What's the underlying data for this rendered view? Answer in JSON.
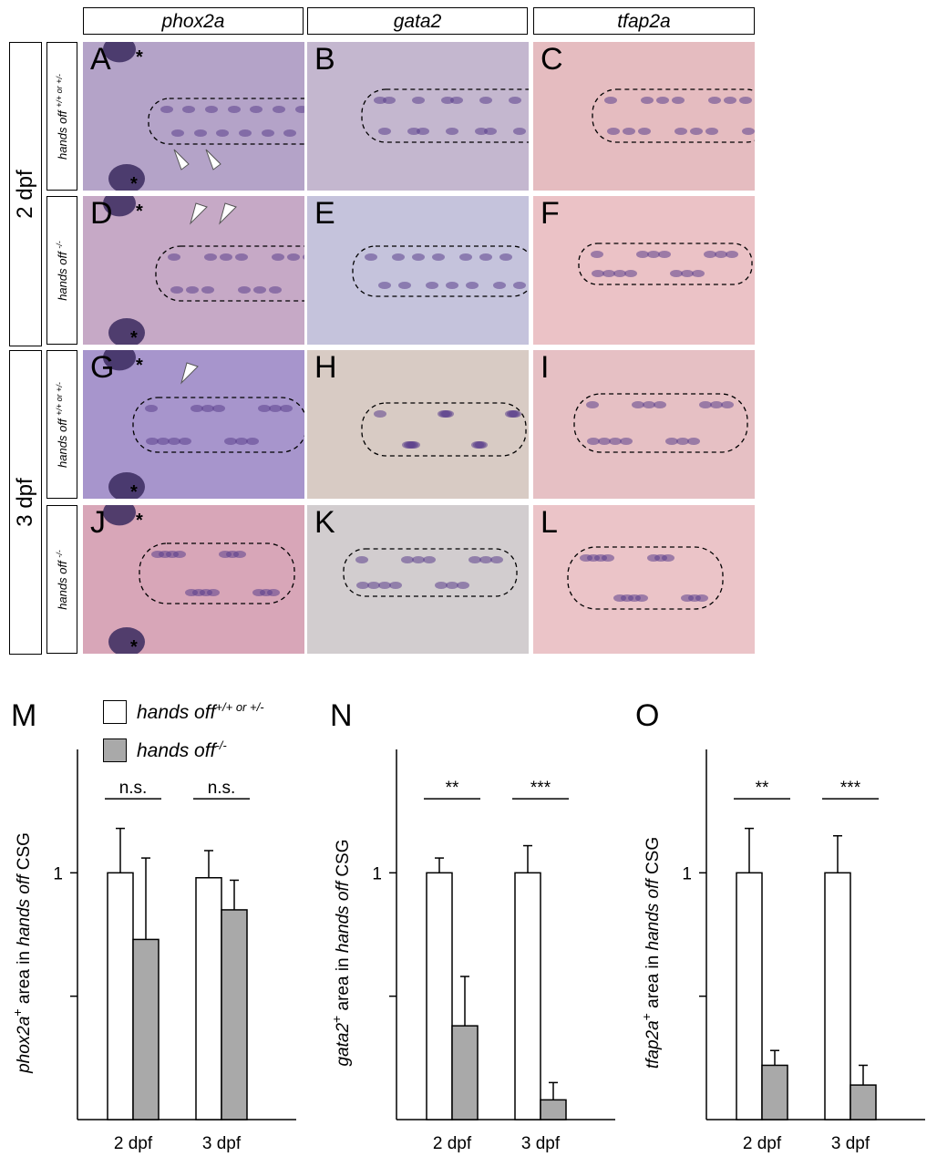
{
  "columns": [
    "phox2a",
    "gata2",
    "tfap2a"
  ],
  "time_labels": [
    "2 dpf",
    "3 dpf"
  ],
  "genotypes": {
    "control_base": "hands off ",
    "control_sup": "+/+ or +/-",
    "mutant_base": "hands off ",
    "mutant_sup": "-/-"
  },
  "panel_letters": [
    "A",
    "B",
    "C",
    "D",
    "E",
    "F",
    "G",
    "H",
    "I",
    "J",
    "K",
    "L"
  ],
  "colors": {
    "purple_bg": "#b9a2c7",
    "pink_bg": "#e3b8bd",
    "stain": "#5b3f8c",
    "bar_control": "#ffffff",
    "bar_mutant": "#a9a9a9"
  },
  "legend": {
    "control": "hands off",
    "control_sup": "+/+ or +/-",
    "mutant": "hands off",
    "mutant_sup": "-/-"
  },
  "chart_data": [
    {
      "panel": "M",
      "type": "bar",
      "categories": [
        "2 dpf",
        "3 dpf"
      ],
      "ylim": [
        0,
        1.5
      ],
      "ytick_label": "1",
      "ylabel_gene": "phox2a",
      "ylabel_sup": "+",
      "ylabel_rest": " area in ",
      "ylabel_italic": "hands off",
      "ylabel_end": " CSG",
      "series": [
        {
          "name": "hands off +/+ or +/-",
          "values": [
            1.0,
            0.98
          ],
          "errors": [
            0.18,
            0.11
          ]
        },
        {
          "name": "hands off -/-",
          "values": [
            0.73,
            0.85
          ],
          "errors": [
            0.33,
            0.12
          ]
        }
      ],
      "significance": [
        "n.s.",
        "n.s."
      ]
    },
    {
      "panel": "N",
      "type": "bar",
      "categories": [
        "2 dpf",
        "3 dpf"
      ],
      "ylim": [
        0,
        1.5
      ],
      "ytick_label": "1",
      "ylabel_gene": "gata2",
      "ylabel_sup": "+",
      "ylabel_rest": " area in ",
      "ylabel_italic": "hands off",
      "ylabel_end": " CSG",
      "series": [
        {
          "name": "hands off +/+ or +/-",
          "values": [
            1.0,
            1.0
          ],
          "errors": [
            0.06,
            0.11
          ]
        },
        {
          "name": "hands off -/-",
          "values": [
            0.38,
            0.08
          ],
          "errors": [
            0.2,
            0.07
          ]
        }
      ],
      "significance": [
        "**",
        "***"
      ]
    },
    {
      "panel": "O",
      "type": "bar",
      "categories": [
        "2 dpf",
        "3 dpf"
      ],
      "ylim": [
        0,
        1.5
      ],
      "ytick_label": "1",
      "ylabel_gene": "tfap2a",
      "ylabel_sup": "+",
      "ylabel_rest": " area in ",
      "ylabel_italic": "hands off",
      "ylabel_end": " CSG",
      "series": [
        {
          "name": "hands off +/+ or +/-",
          "values": [
            1.0,
            1.0
          ],
          "errors": [
            0.18,
            0.15
          ]
        },
        {
          "name": "hands off -/-",
          "values": [
            0.22,
            0.14
          ],
          "errors": [
            0.06,
            0.08
          ]
        }
      ],
      "significance": [
        "**",
        "***"
      ]
    }
  ]
}
